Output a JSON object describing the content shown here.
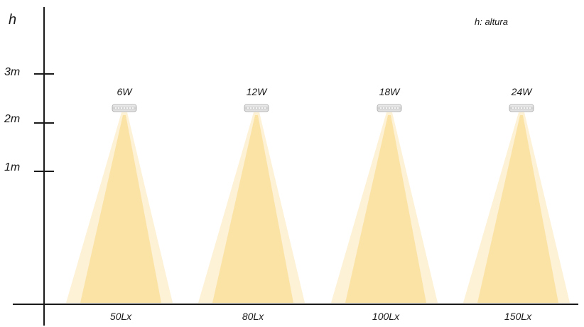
{
  "axis": {
    "y_title": "h",
    "ticks": [
      {
        "label": "3m",
        "value": 3
      },
      {
        "label": "2m",
        "value": 2
      },
      {
        "label": "1m",
        "value": 1
      }
    ]
  },
  "legend_note": "h: altura",
  "lamps": [
    {
      "watt": "6W",
      "lux": "50Lx"
    },
    {
      "watt": "12W",
      "lux": "80Lx"
    },
    {
      "watt": "18W",
      "lux": "100Lx"
    },
    {
      "watt": "24W",
      "lux": "150Lx"
    }
  ],
  "colors": {
    "beam_outer": "#fdf1d6",
    "beam_inner": "#fbe3a6",
    "axis": "#1a1a1a",
    "fixture": "#d9d9d9"
  }
}
